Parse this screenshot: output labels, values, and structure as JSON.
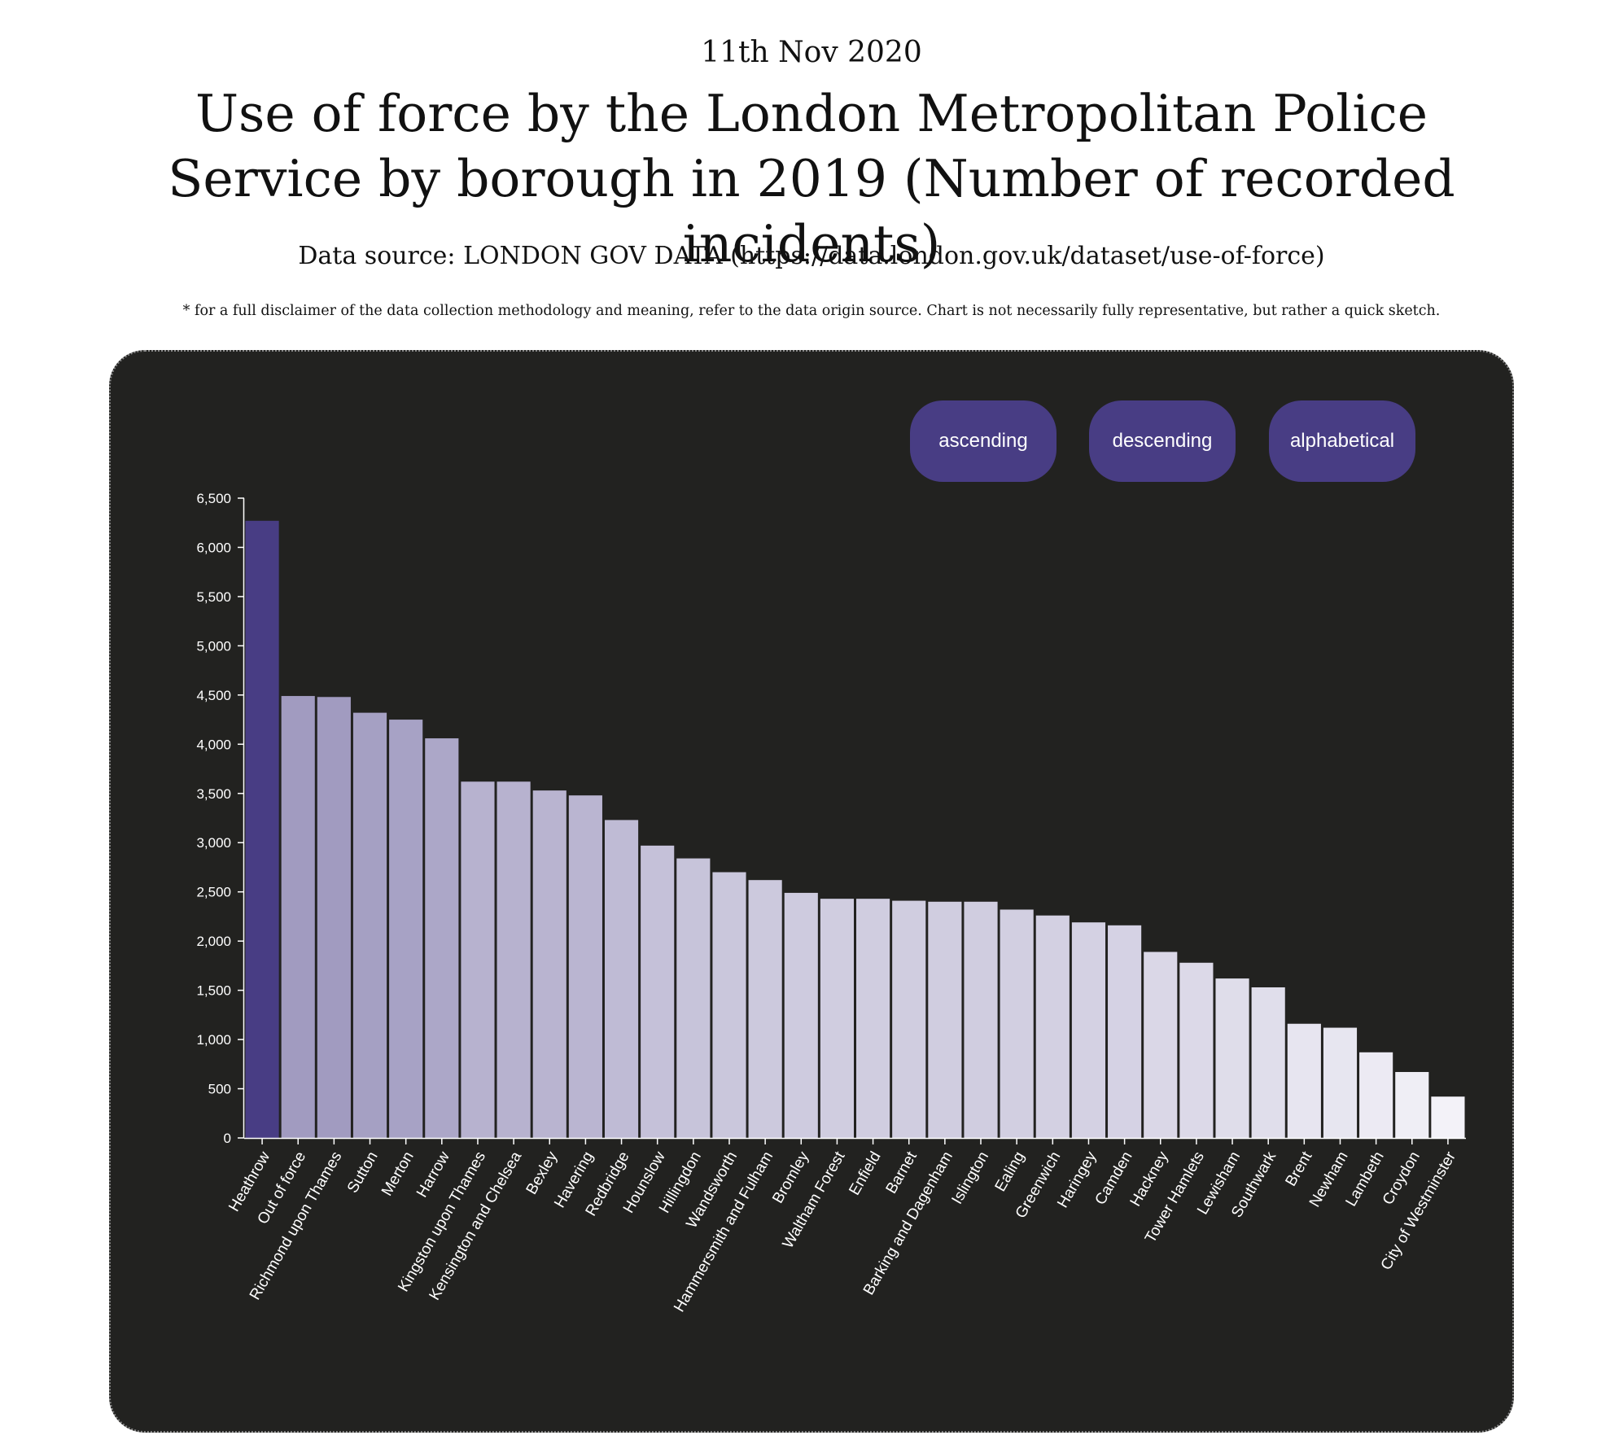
{
  "header": {
    "date": "11th Nov 2020",
    "title": "Use of force by the London Metropolitan Police Service by borough in 2019 (Number of recorded incidents)",
    "source": "Data source: LONDON GOV DATA (https://data.london.gov.uk/dataset/use-of-force)",
    "disclaimer": "* for a full disclaimer of the data collection methodology and meaning, refer to the data origin source. Chart is not necessarily fully representative, but rather a quick sketch."
  },
  "controls": {
    "ascending_label": "ascending",
    "descending_label": "descending",
    "alphabetical_label": "alphabetical"
  },
  "colors": {
    "panel_background": "#222220",
    "button_background": "#483d84",
    "bar_dark": "#483d84",
    "bar_light": "#f3f2f8"
  },
  "chart_data": {
    "type": "bar",
    "title": "",
    "xlabel": "",
    "ylabel": "",
    "ylim": [
      0,
      6500
    ],
    "yticks": [
      0,
      500,
      1000,
      1500,
      2000,
      2500,
      3000,
      3500,
      4000,
      4500,
      5000,
      5500,
      6000,
      6500
    ],
    "ytick_labels": [
      "0",
      "500",
      "1,000",
      "1,500",
      "2,000",
      "2,500",
      "3,000",
      "3,500",
      "4,000",
      "4,500",
      "5,000",
      "5,500",
      "6,000",
      "6,500"
    ],
    "grid": false,
    "categories": [
      "Heathrow",
      "Out of force",
      "Richmond upon Thames",
      "Sutton",
      "Merton",
      "Harrow",
      "Kingston upon Thames",
      "Kensington and Chelsea",
      "Bexley",
      "Havering",
      "Redbridge",
      "Hounslow",
      "Hillingdon",
      "Wandsworth",
      "Hammersmith and Fulham",
      "Bromley",
      "Waltham Forest",
      "Enfield",
      "Barnet",
      "Barking and Dagenham",
      "Islington",
      "Ealing",
      "Greenwich",
      "Haringey",
      "Camden",
      "Hackney",
      "Tower Hamlets",
      "Lewisham",
      "Southwark",
      "Brent",
      "Newham",
      "Lambeth",
      "Croydon",
      "City of Westminster"
    ],
    "values": [
      6270,
      4490,
      4480,
      4320,
      4250,
      4060,
      3620,
      3620,
      3530,
      3480,
      3230,
      2970,
      2840,
      2700,
      2620,
      2490,
      2430,
      2430,
      2410,
      2400,
      2400,
      2320,
      2260,
      2190,
      2160,
      1890,
      1780,
      1620,
      1530,
      1160,
      1120,
      870,
      670,
      420
    ]
  }
}
